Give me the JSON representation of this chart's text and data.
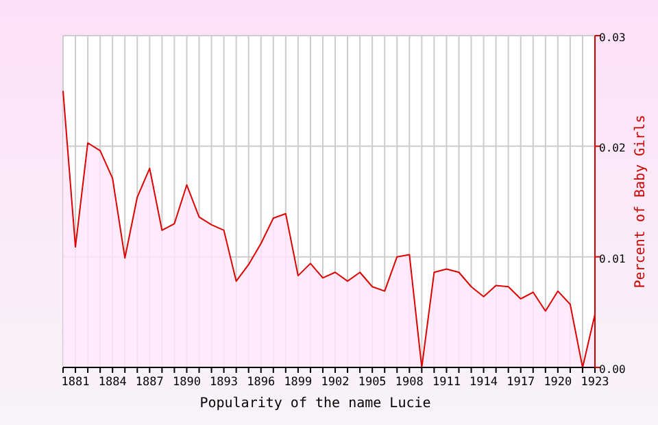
{
  "chart_data": {
    "type": "area",
    "title": "Popularity of the name Lucie",
    "ylabel": "Percent of Baby Girls",
    "x": [
      1880,
      1881,
      1882,
      1883,
      1884,
      1885,
      1886,
      1887,
      1888,
      1889,
      1890,
      1891,
      1892,
      1893,
      1894,
      1895,
      1896,
      1897,
      1898,
      1899,
      1900,
      1901,
      1902,
      1903,
      1904,
      1905,
      1906,
      1907,
      1908,
      1909,
      1910,
      1911,
      1912,
      1913,
      1914,
      1915,
      1916,
      1917,
      1918,
      1919,
      1920,
      1921,
      1922,
      1923
    ],
    "series": [
      {
        "color": "#dd0000",
        "values": [
          0.025,
          0.0109,
          0.0203,
          0.0196,
          0.0171,
          0.0099,
          0.0154,
          0.018,
          0.0124,
          0.013,
          0.0165,
          0.0136,
          0.0129,
          0.0124,
          0.0078,
          0.0093,
          0.0112,
          0.0135,
          0.0139,
          0.0083,
          0.0094,
          0.0081,
          0.0086,
          0.0078,
          0.0086,
          0.0073,
          0.0069,
          0.01,
          0.0102,
          0,
          0.0086,
          0.0089,
          0.0086,
          0.0073,
          0.0064,
          0.0074,
          0.0073,
          0.0062,
          0.0068,
          0.0051,
          0.0069,
          0.0057,
          0,
          0.0048
        ]
      }
    ],
    "xlim": [
      1880,
      1923
    ],
    "xticks": [
      {
        "value": 1880,
        "label": null
      },
      1881,
      {
        "value": 1882,
        "label": null
      },
      {
        "value": 1883,
        "label": null
      },
      1884,
      {
        "value": 1885,
        "label": null
      },
      {
        "value": 1886,
        "label": null
      },
      1887,
      {
        "value": 1888,
        "label": null
      },
      {
        "value": 1889,
        "label": null
      },
      1890,
      {
        "value": 1891,
        "label": null
      },
      {
        "value": 1892,
        "label": null
      },
      1893,
      {
        "value": 1894,
        "label": null
      },
      {
        "value": 1895,
        "label": null
      },
      1896,
      {
        "value": 1897,
        "label": null
      },
      {
        "value": 1898,
        "label": null
      },
      1899,
      {
        "value": 1900,
        "label": null
      },
      {
        "value": 1901,
        "label": null
      },
      1902,
      {
        "value": 1903,
        "label": null
      },
      {
        "value": 1904,
        "label": null
      },
      1905,
      {
        "value": 1906,
        "label": null
      },
      {
        "value": 1907,
        "label": null
      },
      1908,
      {
        "value": 1909,
        "label": null
      },
      {
        "value": 1910,
        "label": null
      },
      1911,
      {
        "value": 1912,
        "label": null
      },
      {
        "value": 1913,
        "label": null
      },
      1914,
      {
        "value": 1915,
        "label": null
      },
      {
        "value": 1916,
        "label": null
      },
      1917,
      {
        "value": 1918,
        "label": null
      },
      {
        "value": 1919,
        "label": null
      },
      1920,
      {
        "value": 1921,
        "label": null
      },
      {
        "value": 1922,
        "label": null
      },
      1923
    ],
    "ylim": [
      0,
      0.03
    ],
    "yticks": [
      {
        "value": 0,
        "label": "0.00"
      },
      {
        "value": 0.01,
        "label": "0.01"
      },
      {
        "value": 0.02,
        "label": "0.02"
      },
      {
        "value": 0.03,
        "label": "0.03"
      }
    ],
    "grid": true
  }
}
